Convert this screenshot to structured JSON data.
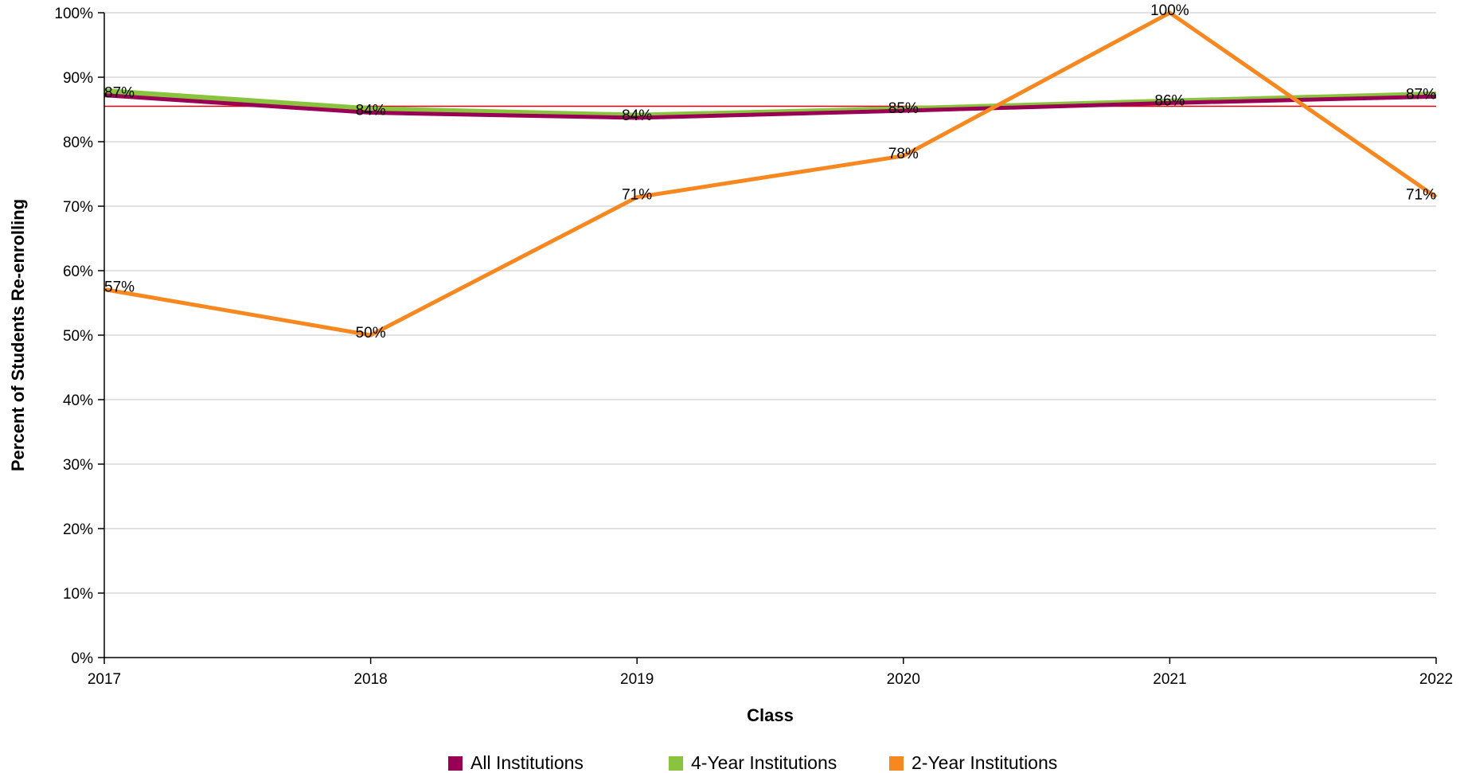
{
  "chart_data": {
    "type": "line",
    "xlabel": "Class",
    "ylabel": "Percent of Students Re-enrolling",
    "categories": [
      "2017",
      "2018",
      "2019",
      "2020",
      "2021",
      "2022"
    ],
    "ylim": [
      0,
      100
    ],
    "yticks": [
      "0%",
      "10%",
      "20%",
      "30%",
      "40%",
      "50%",
      "60%",
      "70%",
      "80%",
      "90%",
      "100%"
    ],
    "grid": true,
    "legend_position": "bottom",
    "reference_line": {
      "value": 85.5,
      "color": "#e0000a"
    },
    "series": [
      {
        "name": "All Institutions",
        "color": "#990055",
        "values": [
          87.2,
          84.5,
          83.7,
          84.8,
          86.0,
          87.0
        ],
        "labels": [
          "87%",
          "84%",
          "84%",
          "85%",
          "86%",
          "87%"
        ]
      },
      {
        "name": "4-Year Institutions",
        "color": "#8ac43f",
        "values": [
          87.8,
          85.0,
          84.0,
          85.0,
          86.2,
          87.3
        ],
        "labels": [
          "",
          "",
          "",
          "",
          "",
          ""
        ]
      },
      {
        "name": "2-Year Institutions",
        "color": "#f7881f",
        "values": [
          57.1,
          50.0,
          71.4,
          77.8,
          100.0,
          71.4
        ],
        "labels": [
          "57%",
          "50%",
          "71%",
          "78%",
          "100%",
          "71%"
        ]
      }
    ]
  }
}
